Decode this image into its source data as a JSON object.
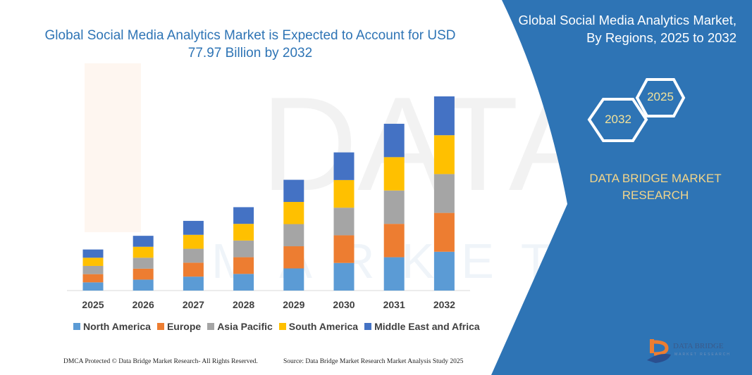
{
  "title": "Global Social Media Analytics Market is Expected to Account for USD 77.97 Billion by 2032",
  "side_panel": {
    "title": "Global Social Media Analytics Market, By Regions, 2025 to 2032",
    "hex_start": "2025",
    "hex_end": "2032",
    "brand": "DATA BRIDGE MARKET RESEARCH",
    "logo_text": "DATA BRIDGE",
    "logo_subtext": "MARKET RESEARCH",
    "color": "#2e74b5"
  },
  "footer": {
    "left": "DMCA Protected © Data Bridge Market Research-  All Rights Reserved.",
    "right": "Source: Data Bridge Market Research  Market Analysis Study 2025"
  },
  "chart_data": {
    "type": "bar",
    "stacked": true,
    "categories": [
      "2025",
      "2026",
      "2027",
      "2028",
      "2029",
      "2030",
      "2031",
      "2032"
    ],
    "series": [
      {
        "name": "North America",
        "color": "#5b9bd5",
        "values": [
          3.3,
          4.4,
          5.6,
          6.7,
          8.9,
          11.1,
          13.4,
          15.6
        ]
      },
      {
        "name": "Europe",
        "color": "#ed7d31",
        "values": [
          3.3,
          4.4,
          5.6,
          6.7,
          8.9,
          11.1,
          13.4,
          15.6
        ]
      },
      {
        "name": "Asia Pacific",
        "color": "#a5a5a5",
        "values": [
          3.3,
          4.4,
          5.6,
          6.7,
          8.9,
          11.1,
          13.4,
          15.6
        ]
      },
      {
        "name": "South America",
        "color": "#ffc000",
        "values": [
          3.3,
          4.4,
          5.6,
          6.7,
          8.9,
          11.1,
          13.4,
          15.6
        ]
      },
      {
        "name": "Middle East and Africa",
        "color": "#4472c4",
        "values": [
          3.3,
          4.4,
          5.6,
          6.7,
          8.9,
          11.1,
          13.4,
          15.6
        ]
      }
    ],
    "xlabel": "",
    "ylabel": "",
    "ylim": [
      0,
      78
    ],
    "grid": false,
    "legend": "bottom"
  }
}
